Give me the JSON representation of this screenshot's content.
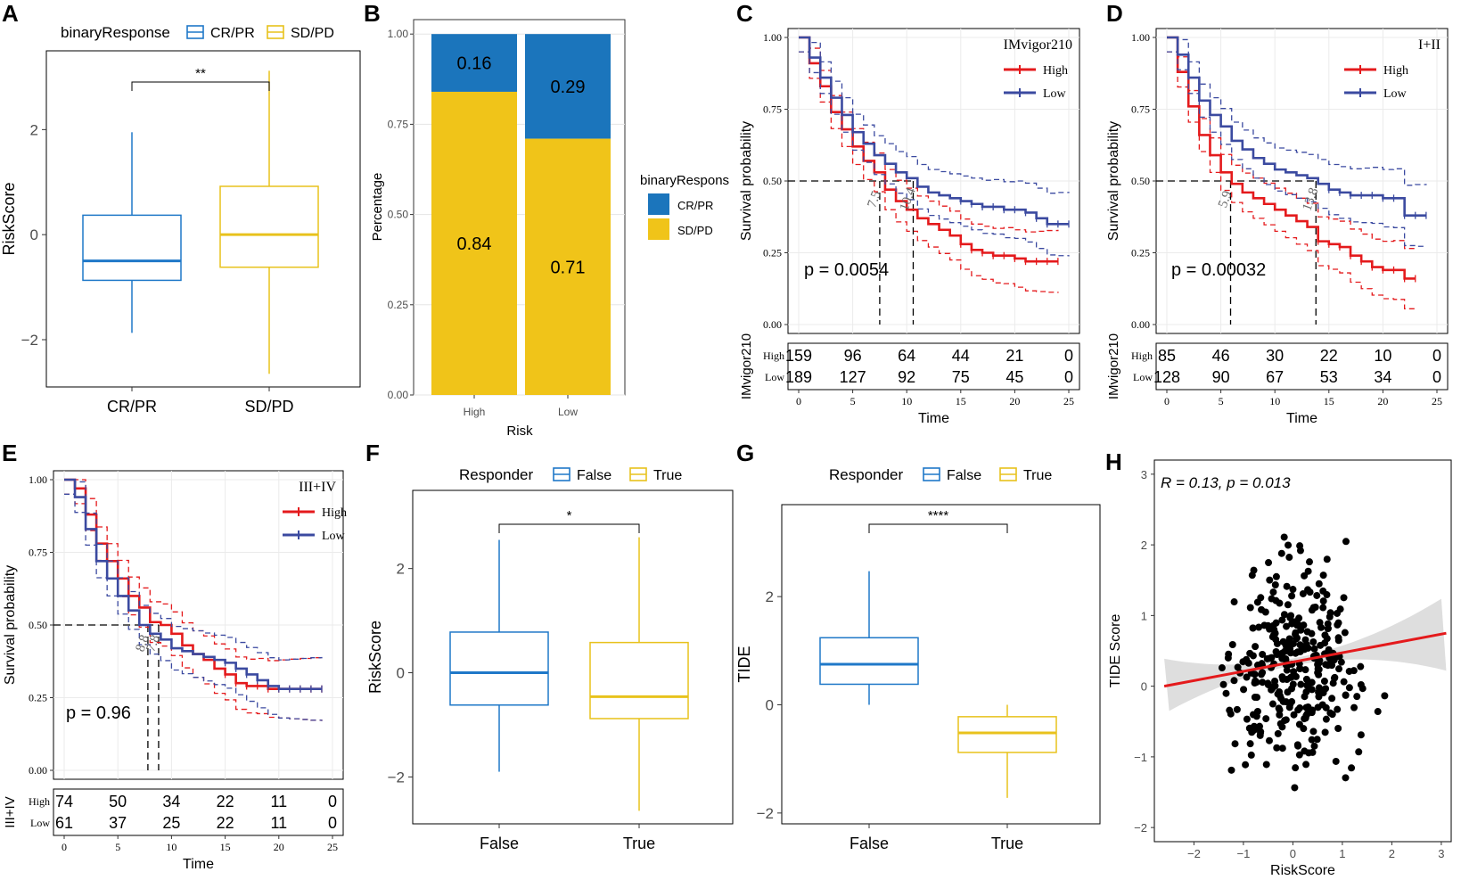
{
  "colors": {
    "blue": "#1f78c8",
    "yellow": "#e8c21c",
    "red": "#e41a1c",
    "navy": "#3b4aa0",
    "bar_blue": "#1b75bc",
    "bar_yellow": "#f0c419"
  },
  "panels": {
    "A": "A",
    "B": "B",
    "C": "C",
    "D": "D",
    "E": "E",
    "F": "F",
    "G": "G",
    "H": "H"
  },
  "chart_data": [
    {
      "id": "A",
      "type": "box",
      "legend_title": "binaryResponse",
      "legend": [
        "CR/PR",
        "SD/PD"
      ],
      "categories": [
        "CR/PR",
        "SD/PD"
      ],
      "boxes": [
        {
          "group": "CR/PR",
          "min": -1.87,
          "q1": -0.87,
          "median": -0.5,
          "q3": 0.37,
          "max": 1.95
        },
        {
          "group": "SD/PD",
          "min": -2.65,
          "q1": -0.62,
          "median": 0.0,
          "q3": 0.92,
          "max": 3.12
        }
      ],
      "ylabel": "RiskScore",
      "xlabel": "",
      "yticks": [
        "2",
        "0",
        "−2"
      ],
      "ylim": [
        -2.9,
        3.5
      ],
      "significance": "**"
    },
    {
      "id": "B",
      "type": "bar",
      "stacked": true,
      "categories": [
        "High",
        "Low"
      ],
      "series": [
        {
          "name": "CR/PR",
          "values": [
            0.16,
            0.29
          ]
        },
        {
          "name": "SD/PD",
          "values": [
            0.84,
            0.71
          ]
        }
      ],
      "labels": {
        "CR/PR": [
          "0.16",
          "0.29"
        ],
        "SD/PD": [
          "0.84",
          "0.71"
        ]
      },
      "ylabel": "Percentage",
      "xlabel": "Risk",
      "yticks": [
        "1.00",
        "0.75",
        "0.50",
        "0.25",
        "0.00"
      ],
      "legend_title": "binaryRespons",
      "legend": [
        "CR/PR",
        "SD/PD"
      ]
    },
    {
      "id": "C",
      "type": "line",
      "title": "IMvigor210",
      "legend": [
        "High",
        "Low"
      ],
      "xlabel": "Time",
      "ylabel": "Survival probability",
      "yticks": [
        "1.00",
        "0.75",
        "0.50",
        "0.25",
        "0.00"
      ],
      "xticks": [
        "0",
        "5",
        "10",
        "15",
        "20",
        "25"
      ],
      "xlim": [
        0,
        25
      ],
      "ylim": [
        0,
        1
      ],
      "pvalue": "p = 0.0054",
      "medians": {
        "High": "7.5",
        "Low": "10.4"
      },
      "series": [
        {
          "name": "High",
          "x": [
            0,
            1,
            2,
            3,
            4,
            5,
            6,
            7,
            8,
            9,
            10,
            11,
            12,
            13,
            14,
            15,
            16,
            17,
            18,
            19,
            20,
            21,
            22,
            23,
            24
          ],
          "y": [
            1.0,
            0.91,
            0.83,
            0.74,
            0.68,
            0.62,
            0.57,
            0.53,
            0.47,
            0.43,
            0.4,
            0.37,
            0.35,
            0.33,
            0.31,
            0.28,
            0.26,
            0.25,
            0.24,
            0.24,
            0.23,
            0.22,
            0.22,
            0.22,
            0.22
          ]
        },
        {
          "name": "Low",
          "x": [
            0,
            1,
            2,
            3,
            4,
            5,
            6,
            7,
            8,
            9,
            10,
            11,
            12,
            13,
            14,
            15,
            16,
            17,
            18,
            19,
            20,
            21,
            22,
            23,
            24,
            25
          ],
          "y": [
            1.0,
            0.93,
            0.86,
            0.79,
            0.73,
            0.67,
            0.63,
            0.59,
            0.56,
            0.53,
            0.51,
            0.48,
            0.46,
            0.45,
            0.44,
            0.43,
            0.42,
            0.41,
            0.41,
            0.4,
            0.4,
            0.39,
            0.37,
            0.35,
            0.35,
            0.35
          ]
        }
      ],
      "risk_table": {
        "title": "IMvigor210",
        "rows": [
          {
            "name": "High",
            "values": [
              "159",
              "96",
              "64",
              "44",
              "21",
              "0"
            ]
          },
          {
            "name": "Low",
            "values": [
              "189",
              "127",
              "92",
              "75",
              "45",
              "0"
            ]
          }
        ]
      }
    },
    {
      "id": "D",
      "type": "line",
      "title": "I+II",
      "legend": [
        "High",
        "Low"
      ],
      "xlabel": "Time",
      "ylabel": "Survival probability",
      "yticks": [
        "1.00",
        "0.75",
        "0.50",
        "0.25",
        "0.00"
      ],
      "xticks": [
        "0",
        "5",
        "10",
        "15",
        "20",
        "25"
      ],
      "xlim": [
        0,
        25
      ],
      "ylim": [
        0,
        1
      ],
      "pvalue": "p = 0.00032",
      "medians": {
        "High": "5.9",
        "Low": "13.8"
      },
      "series": [
        {
          "name": "High",
          "x": [
            0,
            1,
            2,
            3,
            4,
            5,
            6,
            7,
            8,
            9,
            10,
            11,
            12,
            13,
            14,
            15,
            16,
            17,
            18,
            19,
            20,
            21,
            22,
            23
          ],
          "y": [
            1.0,
            0.88,
            0.76,
            0.66,
            0.59,
            0.53,
            0.49,
            0.46,
            0.44,
            0.42,
            0.4,
            0.38,
            0.36,
            0.34,
            0.29,
            0.28,
            0.27,
            0.24,
            0.22,
            0.2,
            0.19,
            0.19,
            0.16,
            0.16
          ]
        },
        {
          "name": "Low",
          "x": [
            0,
            1,
            2,
            3,
            4,
            5,
            6,
            7,
            8,
            9,
            10,
            11,
            12,
            13,
            14,
            15,
            16,
            17,
            18,
            19,
            20,
            21,
            22,
            23,
            24
          ],
          "y": [
            1.0,
            0.94,
            0.86,
            0.78,
            0.73,
            0.69,
            0.64,
            0.61,
            0.58,
            0.56,
            0.54,
            0.53,
            0.52,
            0.51,
            0.49,
            0.47,
            0.46,
            0.45,
            0.45,
            0.45,
            0.44,
            0.44,
            0.38,
            0.38,
            0.38
          ]
        }
      ],
      "risk_table": {
        "title": "IMvigor210",
        "rows": [
          {
            "name": "High",
            "values": [
              "85",
              "46",
              "30",
              "22",
              "10",
              "0"
            ]
          },
          {
            "name": "Low",
            "values": [
              "128",
              "90",
              "67",
              "53",
              "34",
              "0"
            ]
          }
        ]
      }
    },
    {
      "id": "E",
      "type": "line",
      "title": "III+IV",
      "legend": [
        "High",
        "Low"
      ],
      "xlabel": "Time",
      "ylabel": "Survival probability",
      "yticks": [
        "1.00",
        "0.75",
        "0.50",
        "0.25",
        "0.00"
      ],
      "xticks": [
        "0",
        "5",
        "10",
        "15",
        "20",
        "25"
      ],
      "xlim": [
        0,
        25
      ],
      "ylim": [
        0,
        1
      ],
      "pvalue": "p = 0.96",
      "medians": {
        "High": "8.8",
        "Low": "7.8"
      },
      "series": [
        {
          "name": "High",
          "x": [
            0,
            1,
            2,
            3,
            4,
            5,
            6,
            7,
            8,
            9,
            10,
            11,
            12,
            13,
            14,
            15,
            16,
            17,
            18,
            19,
            20,
            21,
            22,
            23,
            24
          ],
          "y": [
            1.0,
            0.97,
            0.88,
            0.78,
            0.72,
            0.66,
            0.6,
            0.56,
            0.51,
            0.5,
            0.47,
            0.43,
            0.4,
            0.38,
            0.35,
            0.33,
            0.3,
            0.29,
            0.29,
            0.28,
            0.28,
            0.28,
            0.28,
            0.28,
            0.28
          ]
        },
        {
          "name": "Low",
          "x": [
            0,
            1,
            2,
            3,
            4,
            5,
            6,
            7,
            8,
            9,
            10,
            11,
            12,
            13,
            14,
            15,
            16,
            17,
            18,
            19,
            20,
            21,
            22,
            23,
            24
          ],
          "y": [
            1.0,
            0.94,
            0.83,
            0.72,
            0.66,
            0.6,
            0.55,
            0.5,
            0.47,
            0.45,
            0.42,
            0.41,
            0.4,
            0.39,
            0.38,
            0.37,
            0.35,
            0.33,
            0.31,
            0.29,
            0.28,
            0.28,
            0.28,
            0.28,
            0.28
          ]
        }
      ],
      "risk_table": {
        "title": "III+IV",
        "rows": [
          {
            "name": "High",
            "values": [
              "74",
              "50",
              "34",
              "22",
              "11",
              "0"
            ]
          },
          {
            "name": "Low",
            "values": [
              "61",
              "37",
              "25",
              "22",
              "11",
              "0"
            ]
          }
        ]
      }
    },
    {
      "id": "F",
      "type": "box",
      "legend_title": "Responder",
      "legend": [
        "False",
        "True"
      ],
      "categories": [
        "False",
        "True"
      ],
      "boxes": [
        {
          "group": "False",
          "min": -1.9,
          "q1": -0.62,
          "median": 0.0,
          "q3": 0.78,
          "max": 2.55
        },
        {
          "group": "True",
          "min": -2.65,
          "q1": -0.88,
          "median": -0.46,
          "q3": 0.58,
          "max": 2.6
        }
      ],
      "ylabel": "RiskScore",
      "xlabel": "",
      "yticks": [
        "2",
        "0",
        "−2"
      ],
      "ylim": [
        -2.9,
        3.5
      ],
      "significance": "*"
    },
    {
      "id": "G",
      "type": "box",
      "legend_title": "Responder",
      "legend": [
        "False",
        "True"
      ],
      "categories": [
        "False",
        "True"
      ],
      "boxes": [
        {
          "group": "False",
          "min": 0.0,
          "q1": 0.38,
          "median": 0.75,
          "q3": 1.24,
          "max": 2.47
        },
        {
          "group": "True",
          "min": -1.72,
          "q1": -0.88,
          "median": -0.52,
          "q3": -0.22,
          "max": 0.0
        }
      ],
      "ylabel": "TIDE",
      "xlabel": "",
      "yticks": [
        "2",
        "0",
        "−2"
      ],
      "ylim": [
        -2.2,
        3.7
      ],
      "significance": "****"
    },
    {
      "id": "H",
      "type": "scatter",
      "annotation": "R = 0.13, p = 0.013",
      "xlabel": "RiskScore",
      "ylabel": "TIDE Score",
      "xticks": [
        "−2",
        "−1",
        "0",
        "1",
        "2",
        "3"
      ],
      "yticks": [
        "3",
        "2",
        "1",
        "0",
        "−1",
        "−2"
      ],
      "xlim": [
        -2.8,
        3.2
      ],
      "ylim": [
        -2.2,
        3.2
      ],
      "fit": {
        "x": [
          -2.6,
          3.1
        ],
        "y": [
          0.0,
          0.75
        ]
      },
      "points_note": "approximately 340 points, sample generated from visible cloud"
    }
  ]
}
